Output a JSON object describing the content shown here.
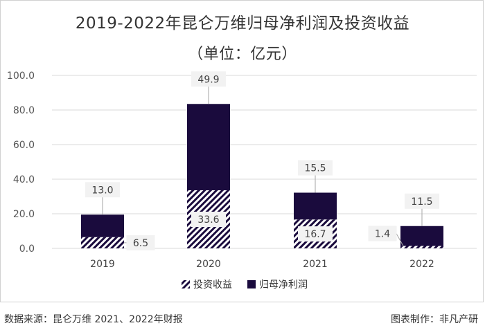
{
  "chart_data": {
    "type": "bar",
    "stacked": true,
    "title": "2019-2022年昆仑万维归母净利润及投资收益",
    "subtitle": "（单位：亿元）",
    "categories": [
      "2019",
      "2020",
      "2021",
      "2022"
    ],
    "series": [
      {
        "name": "投资收益",
        "values": [
          6.5,
          33.6,
          16.7,
          1.4
        ],
        "labels": [
          "6.5",
          "33.6",
          "16.7",
          "1.4"
        ],
        "pattern": "diagonal-hatch"
      },
      {
        "name": "归母净利润",
        "values": [
          13.0,
          49.9,
          15.5,
          11.5
        ],
        "labels": [
          "13.0",
          "49.9",
          "15.5",
          "11.5"
        ],
        "color": "#1a0b3d"
      }
    ],
    "ylim": [
      0,
      100
    ],
    "yticks": [
      0,
      20,
      40,
      60,
      80,
      100
    ],
    "ytick_labels": [
      "0.0",
      "20.0",
      "40.0",
      "60.0",
      "80.0",
      "100.0"
    ],
    "xlabel": "",
    "ylabel": "",
    "grid": true,
    "legend": "bottom"
  },
  "footer": {
    "source": "数据来源：昆仑万维 2021、2022年财报",
    "credit": "图表制作：非凡产研"
  },
  "colors": {
    "bar_dark": "#1a0b3d",
    "hatch": "#1a0b3d",
    "grid": "#d9d9d9",
    "label_box": "#f2f2f2"
  }
}
